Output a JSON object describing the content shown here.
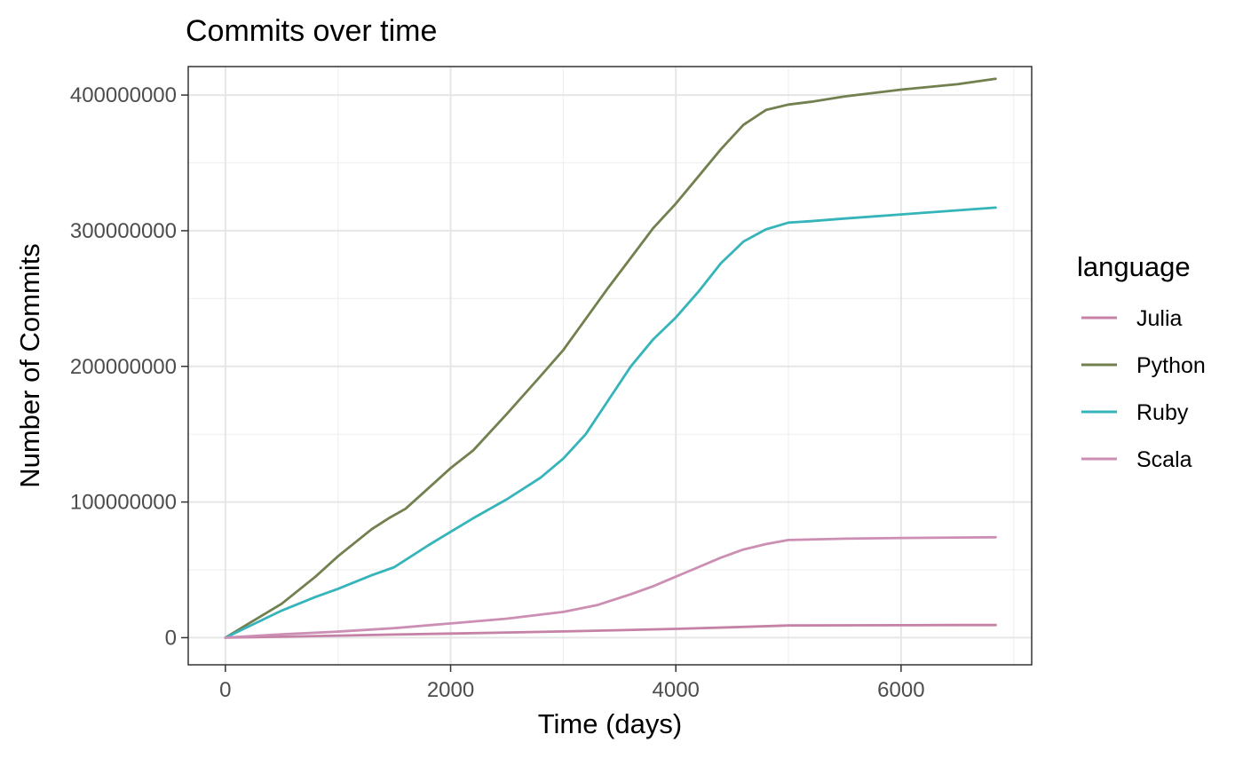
{
  "chart_data": {
    "type": "line",
    "title": "Commits over time",
    "xlabel": "Time (days)",
    "ylabel": "Number of Commits",
    "xlim": [
      -330,
      7160
    ],
    "ylim": [
      -20000000,
      421000000
    ],
    "x_ticks": [
      0,
      2000,
      4000,
      6000
    ],
    "x_tick_labels": [
      "0",
      "2000",
      "4000",
      "6000"
    ],
    "y_ticks": [
      0,
      100000000,
      200000000,
      300000000,
      400000000
    ],
    "y_tick_labels": [
      "0",
      "100000000",
      "200000000",
      "300000000",
      "400000000"
    ],
    "grid": true,
    "legend": {
      "title": "language",
      "position": "right"
    },
    "series": [
      {
        "name": "Julia",
        "color": "#c582a6",
        "x": [
          0,
          500,
          1000,
          1500,
          2000,
          2500,
          3000,
          3500,
          4000,
          4500,
          5000,
          5500,
          6000,
          6500,
          6840
        ],
        "y": [
          0,
          700000,
          1500000,
          2300000,
          3000000,
          3800000,
          4600000,
          5500000,
          6500000,
          7700000,
          9000000,
          9100000,
          9200000,
          9300000,
          9300000
        ]
      },
      {
        "name": "Python",
        "color": "#72804f",
        "x": [
          0,
          200,
          500,
          800,
          1000,
          1300,
          1450,
          1600,
          1800,
          2000,
          2200,
          2500,
          2800,
          3000,
          3200,
          3400,
          3600,
          3800,
          4000,
          4200,
          4400,
          4600,
          4800,
          5000,
          5200,
          5500,
          6000,
          6500,
          6840
        ],
        "y": [
          0,
          10000000,
          25000000,
          45000000,
          60000000,
          80000000,
          88000000,
          95000000,
          110000000,
          125000000,
          138000000,
          165000000,
          193000000,
          212000000,
          235000000,
          258000000,
          280000000,
          302000000,
          320000000,
          340000000,
          360000000,
          378000000,
          389000000,
          393000000,
          395000000,
          399000000,
          404000000,
          408000000,
          412000000
        ]
      },
      {
        "name": "Ruby",
        "color": "#35b4ba",
        "x": [
          0,
          200,
          500,
          800,
          1000,
          1300,
          1500,
          1800,
          2000,
          2200,
          2500,
          2800,
          3000,
          3200,
          3400,
          3600,
          3800,
          4000,
          4200,
          4400,
          4600,
          4800,
          5000,
          5200,
          5500,
          6000,
          6500,
          6840
        ],
        "y": [
          0,
          8000000,
          20000000,
          30000000,
          36000000,
          46000000,
          52000000,
          68000000,
          78000000,
          88000000,
          102000000,
          118000000,
          132000000,
          150000000,
          175000000,
          200000000,
          220000000,
          236000000,
          255000000,
          276000000,
          292000000,
          301000000,
          306000000,
          307000000,
          309000000,
          312000000,
          315000000,
          317000000
        ]
      },
      {
        "name": "Scala",
        "color": "#cc8fb3",
        "x": [
          0,
          500,
          1000,
          1500,
          2000,
          2500,
          3000,
          3300,
          3600,
          3800,
          4000,
          4200,
          4400,
          4600,
          4800,
          5000,
          5500,
          6000,
          6500,
          6840
        ],
        "y": [
          0,
          2500000,
          4500000,
          7000000,
          10500000,
          14000000,
          19000000,
          24000000,
          32000000,
          38000000,
          45000000,
          52000000,
          59000000,
          65000000,
          69000000,
          72000000,
          73000000,
          73500000,
          73800000,
          74000000
        ]
      }
    ]
  }
}
